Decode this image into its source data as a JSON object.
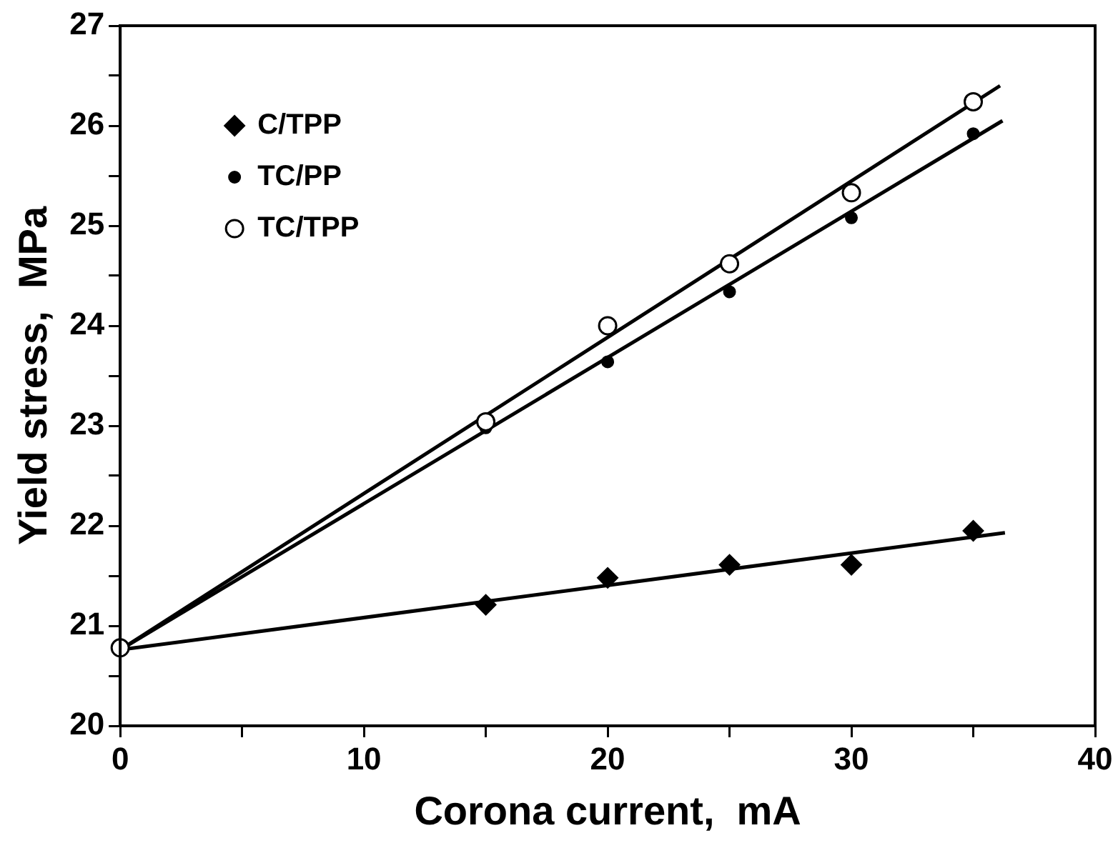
{
  "chart_data": {
    "type": "scatter",
    "xlabel": "Corona current,  mA",
    "ylabel": "Yield stress,  MPa",
    "xlim": [
      0,
      40
    ],
    "ylim": [
      20,
      27
    ],
    "xticks": [
      0,
      {
        "value": 5,
        "label": null
      },
      10,
      {
        "value": 15,
        "label": null
      },
      20,
      {
        "value": 25,
        "label": null
      },
      30,
      {
        "value": 35,
        "label": null
      },
      40
    ],
    "yticks": [
      20,
      {
        "value": 20.5,
        "label": null
      },
      21,
      {
        "value": 21.5,
        "label": null
      },
      22,
      {
        "value": 22.5,
        "label": null
      },
      23,
      {
        "value": 23.5,
        "label": null
      },
      24,
      {
        "value": 24.5,
        "label": null
      },
      25,
      {
        "value": 25.5,
        "label": null
      },
      26,
      {
        "value": 26.5,
        "label": null
      },
      27
    ],
    "grid": false,
    "legend": "top left",
    "series": [
      {
        "name": "C/TPP",
        "color": "#000000",
        "marker": "diamond",
        "x": [
          15,
          20,
          25,
          30,
          35
        ],
        "values": [
          21.21,
          21.48,
          21.61,
          21.61,
          21.95
        ]
      },
      {
        "name": "TC/PP",
        "color": "#000000",
        "marker": "circle",
        "x": [
          15,
          20,
          25,
          30,
          35
        ],
        "values": [
          22.98,
          23.64,
          24.34,
          25.08,
          25.92
        ]
      },
      {
        "name": "TC/TPP",
        "color": "#ffffff",
        "marker": "circle",
        "x": [
          0,
          15,
          20,
          25,
          30,
          35
        ],
        "values": [
          20.78,
          23.04,
          24.0,
          24.62,
          25.33,
          26.24
        ]
      },
      {
        "type": "line",
        "color": "#000000",
        "marker": "none",
        "x": [
          0,
          36.3
        ],
        "values": [
          20.76,
          21.93
        ]
      },
      {
        "type": "line",
        "color": "#000000",
        "marker": "none",
        "x": [
          0,
          36.2
        ],
        "values": [
          20.76,
          26.05
        ]
      },
      {
        "type": "line",
        "color": "#000000",
        "marker": "none",
        "x": [
          0,
          36.1
        ],
        "values": [
          20.76,
          26.4
        ]
      }
    ]
  }
}
